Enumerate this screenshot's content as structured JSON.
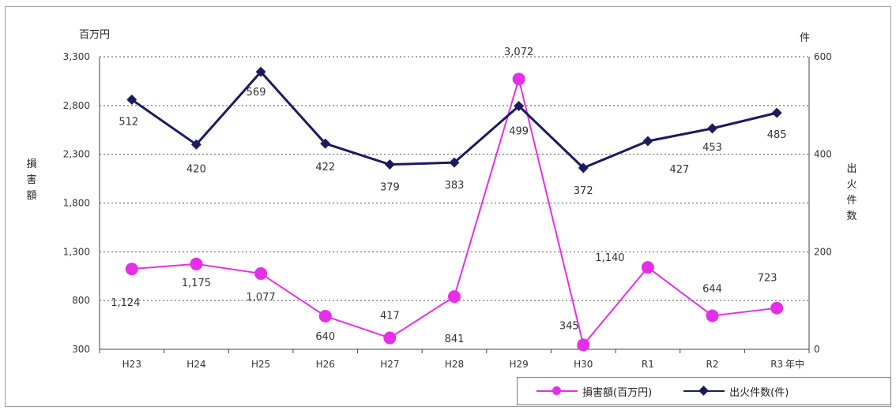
{
  "chart_data": {
    "type": "line",
    "categories": [
      "H23",
      "H24",
      "H25",
      "H26",
      "H27",
      "H28",
      "H29",
      "H30",
      "R1",
      "R2",
      "R3"
    ],
    "x_suffix": "年中",
    "left_axis": {
      "unit": "百万円",
      "label": "損害額",
      "ylim": [
        300,
        3300
      ],
      "ticks": [
        "300",
        "800",
        "1,300",
        "1,800",
        "2,300",
        "2,800",
        "3,300"
      ],
      "tick_values": [
        300,
        800,
        1300,
        1800,
        2300,
        2800,
        3300
      ]
    },
    "right_axis": {
      "unit": "件",
      "label": "出火件数",
      "ylim": [
        0,
        600
      ],
      "ticks": [
        "0",
        "200",
        "400",
        "600"
      ],
      "tick_values": [
        0,
        200,
        400,
        600
      ]
    },
    "series": [
      {
        "name": "損害額(百万円)",
        "axis": "left",
        "color": "#e62ee6",
        "marker": "circle",
        "values": [
          1124,
          1175,
          1077,
          640,
          417,
          841,
          3072,
          345,
          1140,
          644,
          723
        ],
        "labels": [
          "1,124",
          "1,175",
          "1,077",
          "640",
          "417",
          "841",
          "3,072",
          "345",
          "1,140",
          "644",
          "723"
        ]
      },
      {
        "name": "出火件数(件)",
        "axis": "right",
        "color": "#1a1a5e",
        "marker": "diamond",
        "values": [
          512,
          420,
          569,
          422,
          379,
          383,
          499,
          372,
          427,
          453,
          485
        ],
        "labels": [
          "512",
          "420",
          "569",
          "422",
          "379",
          "383",
          "499",
          "372",
          "427",
          "453",
          "485"
        ]
      }
    ],
    "grid": true,
    "legend_position": "bottom-right"
  }
}
